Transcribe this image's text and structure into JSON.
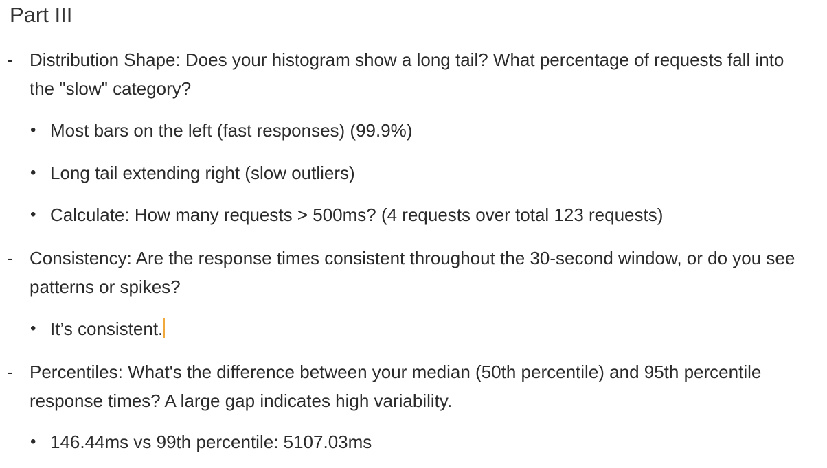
{
  "doc": {
    "title": "Part III",
    "sections": [
      {
        "marker": "-",
        "text": "Distribution Shape: Does your histogram show a long tail? What percentage of requests fall into the \"slow\" category?",
        "bullets": [
          "Most bars on the left (fast responses) (99.9%)",
          "Long tail extending right (slow outliers)",
          "Calculate: How many requests > 500ms? (4 requests over total 123 requests)"
        ]
      },
      {
        "marker": "-",
        "text": "Consistency: Are the response times consistent throughout the 30-second window, or do you see patterns or spikes?",
        "bullets": [
          "It’s consistent."
        ]
      },
      {
        "marker": "-",
        "text": "Percentiles: What's the difference between your median (50th percentile) and 95th percentile response times? A large gap indicates high variability.",
        "bullets": [
          "146.44ms vs 99th percentile: 5107.03ms"
        ]
      }
    ],
    "bullet_symbol": "•",
    "caret_color": "#f2a93b"
  }
}
